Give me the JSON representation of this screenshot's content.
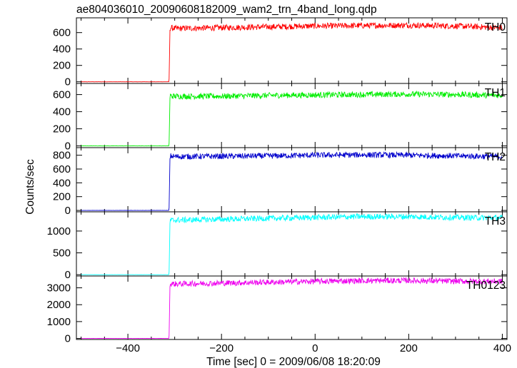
{
  "chart_data": {
    "type": "line",
    "title": "ae804036010_20090608182009_wam2_trn_4band_long.qdp",
    "xlabel": "Time [sec] 0 = 2009/06/08 18:20:09",
    "ylabel": "Counts/sec",
    "xlim": [
      -510,
      410
    ],
    "x_ticks": [
      -400,
      -200,
      0,
      200,
      400
    ],
    "x_tick_labels": [
      "−400",
      "−200",
      "0",
      "200",
      "400"
    ],
    "grid": false,
    "legend": "none",
    "onset_time": -310,
    "panels": [
      {
        "name": "TH0",
        "color": "#ff0000",
        "ylim": [
          -20,
          780
        ],
        "yticks": [
          0,
          200,
          400,
          600
        ],
        "ytick_labels": [
          "0",
          "200",
          "400",
          "600"
        ],
        "x": [
          -500,
          -312,
          -310,
          -300,
          -200,
          -100,
          0,
          100,
          200,
          300,
          400
        ],
        "values": [
          0,
          0,
          660,
          650,
          660,
          670,
          680,
          685,
          690,
          680,
          660
        ]
      },
      {
        "name": "TH1",
        "color": "#00ee00",
        "ylim": [
          -20,
          730
        ],
        "yticks": [
          0,
          200,
          400,
          600
        ],
        "ytick_labels": [
          "0",
          "200",
          "400",
          "600"
        ],
        "x": [
          -500,
          -312,
          -310,
          -300,
          -200,
          -100,
          0,
          100,
          200,
          300,
          400
        ],
        "values": [
          0,
          0,
          585,
          580,
          580,
          590,
          595,
          600,
          605,
          600,
          590
        ]
      },
      {
        "name": "TH2",
        "color": "#0000cc",
        "ylim": [
          -20,
          910
        ],
        "yticks": [
          0,
          200,
          400,
          600,
          800
        ],
        "ytick_labels": [
          "0",
          "200",
          "400",
          "600",
          "800"
        ],
        "x": [
          -500,
          -312,
          -310,
          -300,
          -200,
          -100,
          0,
          100,
          200,
          300,
          400
        ],
        "values": [
          0,
          0,
          790,
          780,
          785,
          790,
          800,
          805,
          800,
          790,
          780
        ]
      },
      {
        "name": "TH3",
        "color": "#00ffff",
        "ylim": [
          -30,
          1440
        ],
        "yticks": [
          0,
          500,
          1000
        ],
        "ytick_labels": [
          "0",
          "500",
          "1000"
        ],
        "x": [
          -500,
          -312,
          -310,
          -300,
          -200,
          -100,
          0,
          100,
          200,
          300,
          400
        ],
        "values": [
          0,
          0,
          1240,
          1250,
          1270,
          1290,
          1310,
          1330,
          1330,
          1310,
          1300
        ]
      },
      {
        "name": "TH0123",
        "color": "#ee00ee",
        "ylim": [
          -60,
          3700
        ],
        "yticks": [
          0,
          1000,
          2000,
          3000
        ],
        "ytick_labels": [
          "0",
          "1000",
          "2000",
          "3000"
        ],
        "x": [
          -500,
          -312,
          -310,
          -300,
          -200,
          -100,
          0,
          100,
          200,
          300,
          400
        ],
        "values": [
          0,
          0,
          3240,
          3230,
          3280,
          3330,
          3380,
          3420,
          3430,
          3390,
          3380
        ]
      }
    ]
  }
}
